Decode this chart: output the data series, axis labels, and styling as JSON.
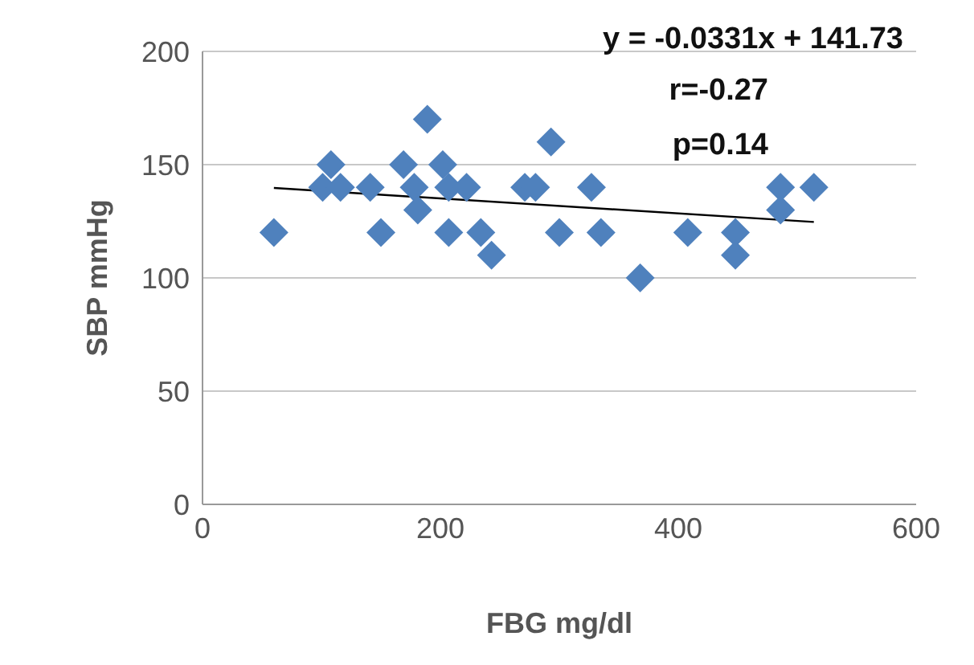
{
  "chart_data": {
    "type": "scatter",
    "xlabel": "FBG mg/dl",
    "ylabel": "SBP mmHg",
    "xlim": [
      0,
      600
    ],
    "xticks": [
      0,
      200,
      400,
      600
    ],
    "ylim": [
      0,
      200
    ],
    "yticks": [
      0,
      50,
      100,
      150,
      200
    ],
    "grid": "y",
    "marker": "diamond",
    "annotations": [
      "y = -0.0331x + 141.73",
      "r=-0.27",
      "p=0.14"
    ],
    "series": [
      {
        "color": "#4f81bd",
        "x": [
          60,
          108,
          101,
          116,
          141,
          150,
          169,
          178,
          181,
          189,
          202,
          207,
          207,
          222,
          234,
          243,
          271,
          280,
          293,
          300,
          327,
          335,
          368,
          408,
          448,
          448,
          486,
          486,
          514
        ],
        "values": [
          120,
          150,
          140,
          140,
          140,
          120,
          150,
          140,
          130,
          170,
          150,
          140,
          120,
          140,
          120,
          110,
          140,
          140,
          160,
          120,
          140,
          120,
          100,
          120,
          120,
          110,
          130,
          140,
          140
        ]
      },
      {
        "type": "line",
        "marker": "none",
        "color": "#000000",
        "x": [
          60,
          514
        ],
        "values": [
          139.7,
          124.7
        ]
      }
    ]
  }
}
